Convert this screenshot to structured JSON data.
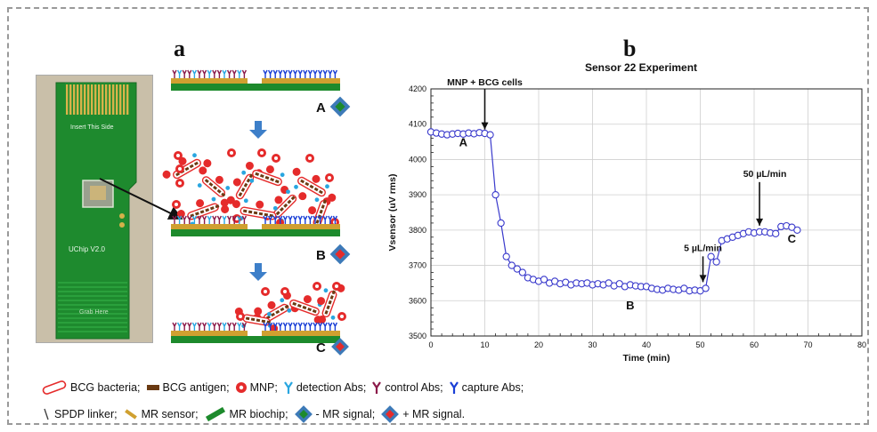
{
  "panels": {
    "a": "a",
    "b": "b"
  },
  "photo": {
    "chip_top_text": "Insert This Side",
    "chip_mid_text": "UChip V2.0",
    "chip_bottom_text": "Grab Here"
  },
  "schematic": {
    "stages": [
      {
        "label": "A",
        "signal": "- MR signal"
      },
      {
        "label": "B",
        "signal": "+ MR signal"
      },
      {
        "label": "C",
        "signal": "+ MR signal"
      }
    ]
  },
  "chart_data": {
    "type": "line",
    "title": "Sensor 22 Experiment",
    "xlabel": "Time (min)",
    "ylabel": "Vsensor (uV rms)",
    "xlim": [
      0,
      80
    ],
    "ylim": [
      3500,
      4200
    ],
    "xticks": [
      0,
      10,
      20,
      30,
      40,
      50,
      60,
      70,
      80
    ],
    "yticks": [
      3500,
      3600,
      3700,
      3800,
      3900,
      4000,
      4100,
      4200
    ],
    "grid": true,
    "series": [
      {
        "name": "",
        "color": "#3a3acc",
        "x": [
          0,
          1,
          2,
          3,
          4,
          5,
          6,
          7,
          8,
          9,
          10,
          11,
          12,
          13,
          14,
          15,
          16,
          17,
          18,
          19,
          20,
          21,
          22,
          23,
          24,
          25,
          26,
          27,
          28,
          29,
          30,
          31,
          32,
          33,
          34,
          35,
          36,
          37,
          38,
          39,
          40,
          41,
          42,
          43,
          44,
          45,
          46,
          47,
          48,
          49,
          50,
          51,
          52,
          53,
          54,
          55,
          56,
          57,
          58,
          59,
          60,
          61,
          62,
          63,
          64,
          65,
          66,
          67,
          68
        ],
        "y": [
          4078,
          4075,
          4072,
          4070,
          4072,
          4074,
          4072,
          4075,
          4073,
          4076,
          4074,
          4070,
          3900,
          3820,
          3725,
          3700,
          3690,
          3680,
          3665,
          3660,
          3655,
          3660,
          3650,
          3655,
          3648,
          3652,
          3645,
          3650,
          3648,
          3650,
          3645,
          3648,
          3645,
          3650,
          3642,
          3648,
          3640,
          3645,
          3642,
          3640,
          3640,
          3635,
          3632,
          3630,
          3635,
          3632,
          3630,
          3635,
          3628,
          3630,
          3628,
          3635,
          3725,
          3710,
          3770,
          3775,
          3780,
          3785,
          3790,
          3795,
          3792,
          3795,
          3795,
          3792,
          3790,
          3810,
          3812,
          3808,
          3800
        ]
      }
    ],
    "annotations": [
      {
        "text": "MNP + BCG cells",
        "x": 10,
        "y": 4070
      },
      {
        "text": "5 µL/min",
        "x": 50.5,
        "y": 3635
      },
      {
        "text": "50 µL/min",
        "x": 61,
        "y": 3795
      },
      {
        "text": "A",
        "x": 6,
        "y": 4038
      },
      {
        "text": "B",
        "x": 37,
        "y": 3575
      },
      {
        "text": "C",
        "x": 67,
        "y": 3765
      }
    ]
  },
  "legend": {
    "row1": [
      {
        "icon": "bcg-bacteria-icon",
        "text": "BCG bacteria;"
      },
      {
        "icon": "bcg-antigen-icon",
        "text": "BCG antigen;"
      },
      {
        "icon": "mnp-icon",
        "text": "MNP;"
      },
      {
        "icon": "detection-abs-icon",
        "text": "detection Abs;"
      },
      {
        "icon": "control-abs-icon",
        "text": "control Abs;"
      },
      {
        "icon": "capture-abs-icon",
        "text": "capture Abs;"
      }
    ],
    "row2": [
      {
        "icon": "spdp-linker-icon",
        "text": "SPDP linker;"
      },
      {
        "icon": "mr-sensor-icon",
        "text": "MR sensor;"
      },
      {
        "icon": "mr-biochip-icon",
        "text": "MR biochip;"
      },
      {
        "icon": "minus-mr-signal-icon",
        "text": "- MR signal;"
      },
      {
        "icon": "plus-mr-signal-icon",
        "text": "+ MR signal."
      }
    ]
  },
  "colors": {
    "series": "#3a3acc",
    "mnp": "#e52b2b",
    "board": "#1d8a2c",
    "sensor": "#d0a030",
    "detection": "#29a6e0",
    "control": "#8b1a4a",
    "capture": "#1a3fd6",
    "antigen": "#6a3a12"
  }
}
